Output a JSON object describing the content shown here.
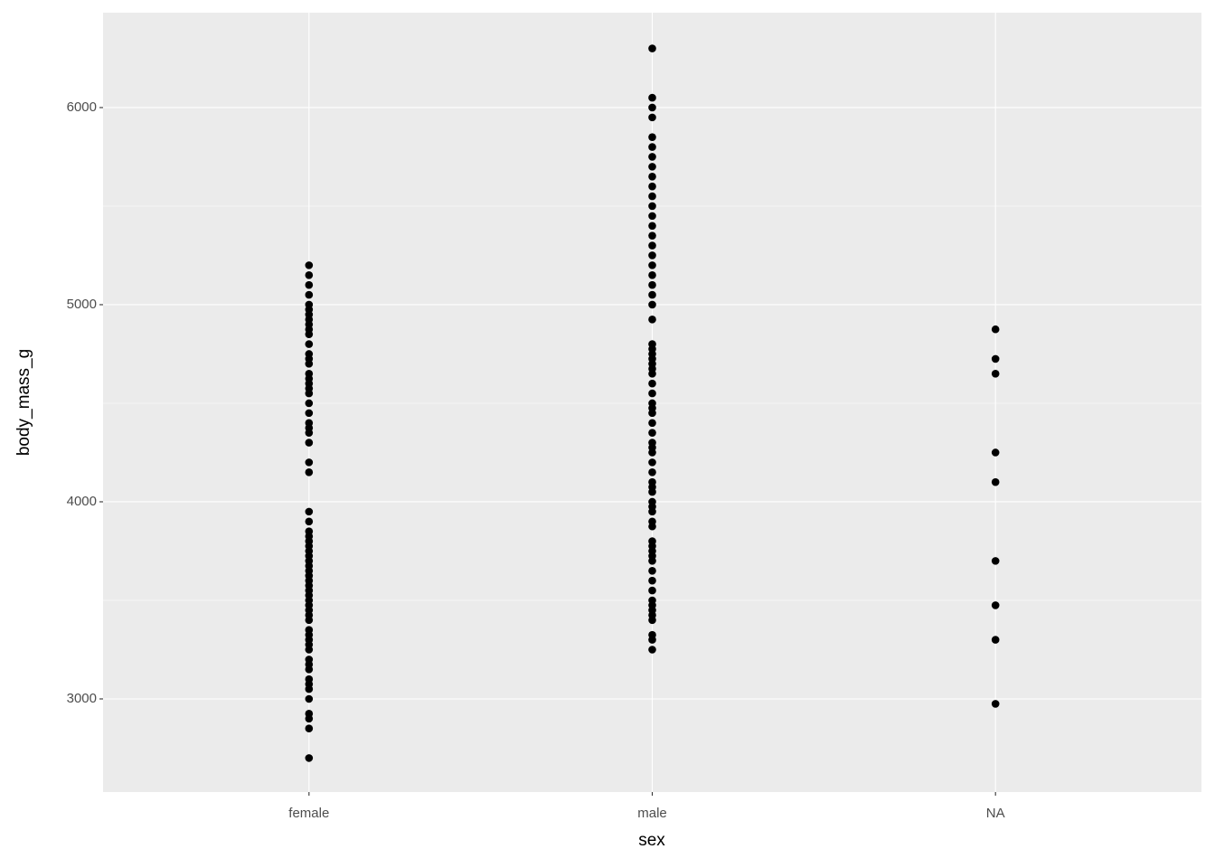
{
  "chart_data": {
    "type": "strip",
    "x_label": "sex",
    "y_label": "body_mass_g",
    "categories": [
      "female",
      "male",
      "NA"
    ],
    "values": [
      [
        2700,
        2850,
        2900,
        2925,
        3000,
        3050,
        3075,
        3100,
        3150,
        3175,
        3200,
        3250,
        3275,
        3300,
        3325,
        3350,
        3400,
        3425,
        3450,
        3475,
        3500,
        3525,
        3550,
        3575,
        3600,
        3625,
        3650,
        3675,
        3700,
        3725,
        3750,
        3775,
        3800,
        3825,
        3850,
        3900,
        3950,
        4150,
        4200,
        4300,
        4350,
        4375,
        4400,
        4450,
        4500,
        4550,
        4575,
        4600,
        4625,
        4650,
        4700,
        4725,
        4750,
        4800,
        4850,
        4875,
        4900,
        4925,
        4950,
        4975,
        5000,
        5050,
        5100,
        5150,
        5200
      ],
      [
        3250,
        3300,
        3325,
        3400,
        3425,
        3450,
        3475,
        3500,
        3550,
        3600,
        3650,
        3700,
        3725,
        3750,
        3775,
        3800,
        3875,
        3900,
        3950,
        3975,
        4000,
        4050,
        4075,
        4100,
        4150,
        4200,
        4250,
        4275,
        4300,
        4350,
        4400,
        4450,
        4475,
        4500,
        4550,
        4600,
        4650,
        4675,
        4700,
        4725,
        4750,
        4775,
        4800,
        4925,
        5000,
        5050,
        5100,
        5150,
        5200,
        5250,
        5300,
        5350,
        5400,
        5450,
        5500,
        5550,
        5600,
        5650,
        5700,
        5750,
        5800,
        5850,
        5950,
        6000,
        6050,
        6300
      ],
      [
        2975,
        3300,
        3475,
        3700,
        4100,
        4250,
        4650,
        4725,
        4875
      ]
    ],
    "color": "#000000",
    "ylim": [
      2527.5,
      6481.5
    ],
    "yticks": [
      3000,
      4000,
      5000,
      6000
    ],
    "grid": true
  }
}
